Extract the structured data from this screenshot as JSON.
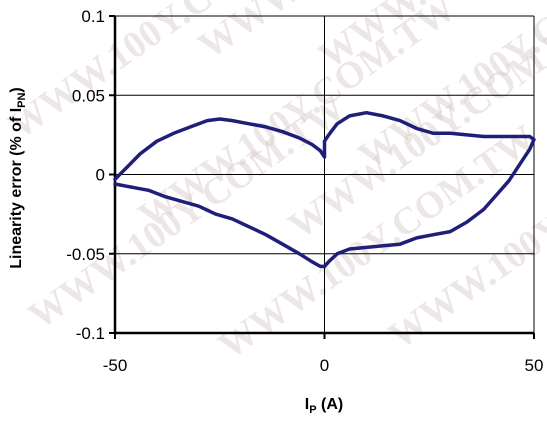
{
  "chart_data": {
    "type": "line",
    "watermark": "WWW.100Y.COM.TW",
    "xlabel_main": "I",
    "xlabel_sub": "P",
    "xlabel_unit": " (A)",
    "ylabel_main": "Linearity error  (% of I",
    "ylabel_sub": "PN",
    "ylabel_end": ")",
    "xlim": [
      -50,
      50
    ],
    "ylim": [
      -0.1,
      0.1
    ],
    "x_ticks": [
      -50,
      0,
      50
    ],
    "x_tick_labels": [
      "-50",
      "0",
      "50"
    ],
    "y_ticks": [
      -0.1,
      -0.05,
      0,
      0.05,
      0.1
    ],
    "y_tick_labels": [
      "-0.1",
      "-0.05",
      "0",
      "0.05",
      "0.1"
    ],
    "grid": true,
    "line_color": "#1f1f7a",
    "series": [
      {
        "x": [
          -50,
          -47,
          -44,
          -40,
          -36,
          -32,
          -28,
          -25,
          -22,
          -18,
          -14,
          -10,
          -6,
          -3,
          -1,
          0,
          0,
          1,
          3,
          6,
          10,
          14,
          18,
          22,
          26,
          30,
          34,
          38,
          42,
          46,
          49,
          50,
          50,
          49,
          47,
          44,
          41,
          38,
          34,
          30,
          26,
          22,
          18,
          14,
          10,
          6,
          3,
          1,
          0,
          -1,
          -3,
          -6,
          -10,
          -14,
          -18,
          -22,
          -26,
          -30,
          -34,
          -38,
          -42,
          -46,
          -50
        ],
        "y": [
          -0.003,
          0.005,
          0.013,
          0.021,
          0.026,
          0.03,
          0.034,
          0.035,
          0.034,
          0.032,
          0.03,
          0.027,
          0.023,
          0.019,
          0.015,
          0.011,
          0.021,
          0.025,
          0.032,
          0.037,
          0.039,
          0.037,
          0.034,
          0.029,
          0.026,
          0.026,
          0.025,
          0.024,
          0.024,
          0.024,
          0.024,
          0.022,
          0.022,
          0.016,
          0.008,
          -0.004,
          -0.013,
          -0.022,
          -0.03,
          -0.036,
          -0.038,
          -0.04,
          -0.044,
          -0.045,
          -0.046,
          -0.047,
          -0.05,
          -0.055,
          -0.058,
          -0.058,
          -0.055,
          -0.05,
          -0.044,
          -0.038,
          -0.033,
          -0.028,
          -0.025,
          -0.02,
          -0.017,
          -0.014,
          -0.01,
          -0.008,
          -0.006
        ]
      }
    ]
  }
}
